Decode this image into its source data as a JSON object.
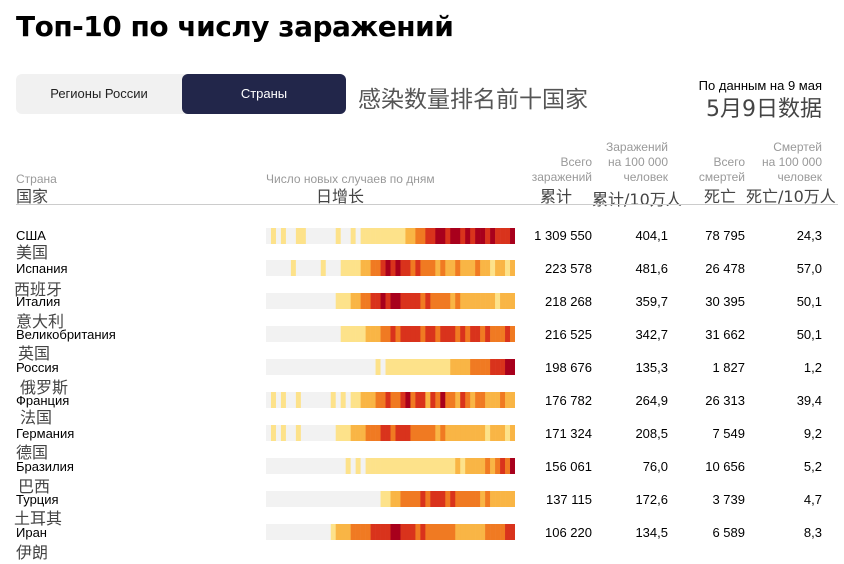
{
  "title": "Топ-10 по числу заражений",
  "tabs": {
    "regions": "Регионы России",
    "countries": "Страны"
  },
  "subtitle_cn": "感染数量排名前十国家",
  "date_label": "По данным на 9 мая",
  "date_cn": "5月9日数据",
  "headers": {
    "country": "Страна",
    "country_cn": "国家",
    "daily": "Число новых случаев по дням",
    "daily_cn": "日增长",
    "total": [
      "Всего",
      "заражений"
    ],
    "total_cn": "累计",
    "per100k": [
      "Заражений",
      "на 100 000",
      "человек"
    ],
    "per100k_cn": "累计/10万人",
    "deaths": [
      "Всего",
      "смертей"
    ],
    "deaths_cn": "死亡",
    "deaths100k": [
      "Смертей",
      "на 100 000",
      "человек"
    ],
    "deaths100k_cn": "死亡/10万人"
  },
  "colors": {
    "accent": "#22264a",
    "heat_scale": [
      "#f2f2f2",
      "#fde28a",
      "#f9b545",
      "#f07a22",
      "#d9331c",
      "#a8001c"
    ]
  },
  "rows": [
    {
      "name": "США",
      "name_cn": "美国",
      "total": "1 309 550",
      "per100k": "404,1",
      "deaths": "78 795",
      "deaths100k": "24,3"
    },
    {
      "name": "Испания",
      "name_cn": "西班牙",
      "total": "223 578",
      "per100k": "481,6",
      "deaths": "26 478",
      "deaths100k": "57,0"
    },
    {
      "name": "Италия",
      "name_cn": "意大利",
      "total": "218 268",
      "per100k": "359,7",
      "deaths": "30 395",
      "deaths100k": "50,1"
    },
    {
      "name": "Великобритания",
      "name_cn": "英国",
      "total": "216 525",
      "per100k": "342,7",
      "deaths": "31 662",
      "deaths100k": "50,1"
    },
    {
      "name": "Россия",
      "name_cn": "俄罗斯",
      "total": "198 676",
      "per100k": "135,3",
      "deaths": "1 827",
      "deaths100k": "1,2"
    },
    {
      "name": "Франция",
      "name_cn": "法国",
      "total": "176 782",
      "per100k": "264,9",
      "deaths": "26 313",
      "deaths100k": "39,4"
    },
    {
      "name": "Германия",
      "name_cn": "德国",
      "total": "171 324",
      "per100k": "208,5",
      "deaths": "7 549",
      "deaths100k": "9,2"
    },
    {
      "name": "Бразилия",
      "name_cn": "巴西",
      "total": "156 061",
      "per100k": "76,0",
      "deaths": "10 656",
      "deaths100k": "5,2"
    },
    {
      "name": "Турция",
      "name_cn": "土耳其",
      "total": "137 115",
      "per100k": "172,6",
      "deaths": "3 739",
      "deaths100k": "4,7"
    },
    {
      "name": "Иран",
      "name_cn": "伊朗",
      "total": "106 220",
      "per100k": "134,5",
      "deaths": "6 589",
      "deaths100k": "8,3"
    }
  ],
  "chart_data": {
    "type": "heatmap",
    "title": "Число новых случаев по дням",
    "scale_levels": "0 = no new cases, 1–5 = increasing intensity (yellow → dark red)",
    "series": [
      {
        "name": "США",
        "values": [
          0,
          1,
          0,
          1,
          0,
          0,
          1,
          1,
          0,
          0,
          0,
          0,
          0,
          0,
          1,
          0,
          0,
          1,
          0,
          1,
          1,
          1,
          1,
          1,
          1,
          1,
          1,
          1,
          2,
          2,
          3,
          3,
          4,
          4,
          5,
          5,
          4,
          5,
          5,
          4,
          5,
          4,
          5,
          5,
          4,
          5,
          4,
          4,
          4,
          5
        ]
      },
      {
        "name": "Испания",
        "values": [
          0,
          0,
          0,
          0,
          0,
          1,
          0,
          0,
          0,
          0,
          0,
          1,
          0,
          0,
          0,
          1,
          1,
          1,
          1,
          2,
          2,
          3,
          3,
          4,
          5,
          4,
          5,
          4,
          4,
          3,
          4,
          3,
          3,
          3,
          2,
          3,
          2,
          2,
          3,
          2,
          2,
          2,
          3,
          2,
          2,
          1,
          2,
          2,
          1,
          2
        ]
      },
      {
        "name": "Италия",
        "values": [
          0,
          0,
          0,
          0,
          0,
          0,
          0,
          0,
          0,
          0,
          0,
          0,
          0,
          0,
          1,
          1,
          1,
          2,
          2,
          3,
          3,
          4,
          4,
          5,
          4,
          5,
          5,
          4,
          4,
          4,
          4,
          3,
          4,
          3,
          3,
          3,
          3,
          2,
          3,
          2,
          2,
          2,
          2,
          2,
          2,
          2,
          1,
          2,
          2,
          2
        ]
      },
      {
        "name": "Великобритания",
        "values": [
          0,
          0,
          0,
          0,
          0,
          0,
          0,
          0,
          0,
          0,
          0,
          0,
          0,
          0,
          0,
          1,
          1,
          1,
          1,
          1,
          2,
          2,
          2,
          3,
          3,
          4,
          3,
          4,
          4,
          4,
          4,
          3,
          4,
          4,
          3,
          4,
          4,
          4,
          3,
          4,
          3,
          4,
          4,
          3,
          4,
          3,
          3,
          3,
          4,
          3
        ]
      },
      {
        "name": "Россия",
        "values": [
          0,
          0,
          0,
          0,
          0,
          0,
          0,
          0,
          0,
          0,
          0,
          0,
          0,
          0,
          0,
          0,
          0,
          0,
          0,
          0,
          0,
          0,
          1,
          0,
          1,
          1,
          1,
          1,
          1,
          1,
          1,
          1,
          1,
          1,
          1,
          1,
          1,
          2,
          2,
          2,
          2,
          3,
          3,
          3,
          3,
          4,
          4,
          4,
          5,
          5
        ]
      },
      {
        "name": "Франция",
        "values": [
          0,
          1,
          0,
          1,
          0,
          0,
          1,
          0,
          0,
          0,
          0,
          0,
          0,
          1,
          0,
          1,
          0,
          1,
          1,
          2,
          2,
          2,
          3,
          3,
          4,
          3,
          3,
          4,
          5,
          3,
          4,
          4,
          2,
          4,
          3,
          5,
          3,
          3,
          2,
          4,
          3,
          2,
          3,
          3,
          2,
          2,
          2,
          3,
          2,
          2
        ]
      },
      {
        "name": "Германия",
        "values": [
          0,
          1,
          0,
          1,
          0,
          0,
          1,
          0,
          0,
          0,
          0,
          0,
          0,
          0,
          1,
          1,
          1,
          2,
          2,
          2,
          3,
          3,
          3,
          4,
          4,
          3,
          4,
          4,
          4,
          3,
          3,
          3,
          3,
          3,
          2,
          3,
          2,
          2,
          2,
          2,
          2,
          2,
          2,
          2,
          1,
          2,
          2,
          2,
          1,
          2
        ]
      },
      {
        "name": "Бразилия",
        "values": [
          0,
          0,
          0,
          0,
          0,
          0,
          0,
          0,
          0,
          0,
          0,
          0,
          0,
          0,
          0,
          0,
          1,
          0,
          1,
          0,
          1,
          1,
          1,
          1,
          1,
          1,
          1,
          1,
          1,
          1,
          1,
          1,
          1,
          1,
          1,
          1,
          1,
          1,
          2,
          1,
          2,
          2,
          2,
          2,
          3,
          2,
          3,
          4,
          3,
          5
        ]
      },
      {
        "name": "Турция",
        "values": [
          0,
          0,
          0,
          0,
          0,
          0,
          0,
          0,
          0,
          0,
          0,
          0,
          0,
          0,
          0,
          0,
          0,
          0,
          0,
          0,
          0,
          0,
          0,
          1,
          1,
          2,
          2,
          3,
          3,
          3,
          3,
          4,
          3,
          4,
          4,
          4,
          3,
          4,
          3,
          3,
          3,
          3,
          3,
          2,
          3,
          2,
          2,
          2,
          2,
          2
        ]
      },
      {
        "name": "Иран",
        "values": [
          0,
          0,
          0,
          0,
          0,
          0,
          0,
          0,
          0,
          0,
          0,
          0,
          0,
          1,
          2,
          2,
          2,
          3,
          3,
          3,
          3,
          4,
          4,
          4,
          4,
          5,
          5,
          4,
          4,
          4,
          3,
          4,
          3,
          3,
          3,
          3,
          3,
          3,
          2,
          2,
          2,
          2,
          2,
          2,
          3,
          3,
          3,
          3,
          4,
          4
        ]
      }
    ]
  }
}
